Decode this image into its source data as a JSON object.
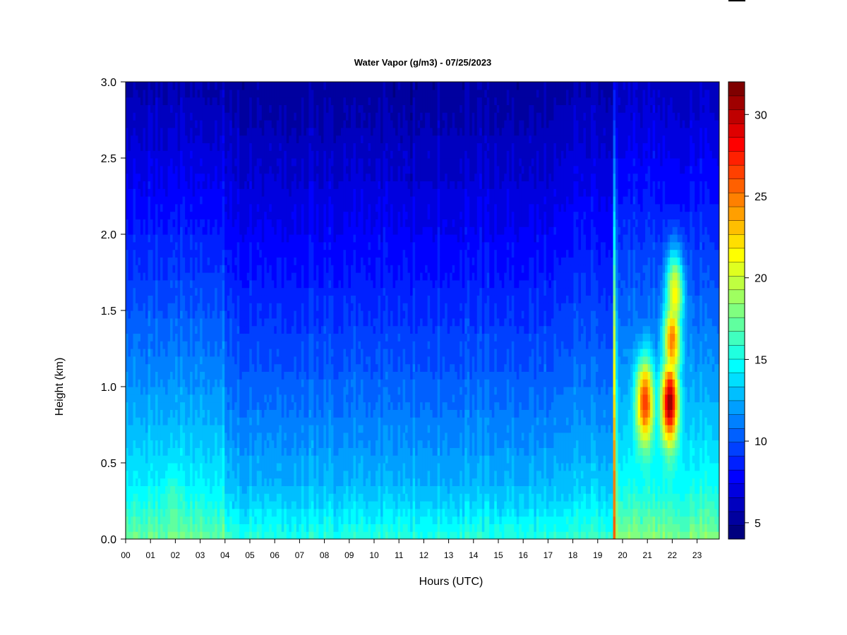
{
  "chart_data": {
    "type": "heatmap",
    "title": "Water Vapor (g/m3) - 07/25/2023",
    "xlabel": "Hours (UTC)",
    "ylabel": "Height (km)",
    "xlim": [
      0,
      24
    ],
    "ylim": [
      0,
      3.0
    ],
    "x_ticks": [
      "00",
      "01",
      "02",
      "03",
      "04",
      "05",
      "06",
      "07",
      "08",
      "09",
      "10",
      "11",
      "12",
      "13",
      "14",
      "15",
      "16",
      "17",
      "18",
      "19",
      "20",
      "21",
      "22",
      "23"
    ],
    "y_ticks": [
      "0.0",
      "0.5",
      "1.0",
      "1.5",
      "2.0",
      "2.5",
      "3.0"
    ],
    "colorbar": {
      "min": 4,
      "max": 32,
      "ticks": [
        "5",
        "10",
        "15",
        "20",
        "25",
        "30"
      ],
      "colors": [
        "#00007f",
        "#00009f",
        "#0000bf",
        "#0000df",
        "#0000ff",
        "#0020ff",
        "#0040ff",
        "#0060ff",
        "#0080ff",
        "#009fff",
        "#00bfff",
        "#00dfff",
        "#00ffff",
        "#20ffdf",
        "#40ffbf",
        "#60ff9f",
        "#80ff80",
        "#9fff60",
        "#bfff40",
        "#dfff20",
        "#ffff00",
        "#ffdf00",
        "#ffbf00",
        "#ff9f00",
        "#ff8000",
        "#ff6000",
        "#ff4000",
        "#ff2000",
        "#ff0000",
        "#df0000",
        "#bf0000",
        "#9f0000",
        "#7f0000"
      ]
    },
    "profile_regimes": [
      {
        "hours": [
          0,
          4
        ],
        "surface": 16.5,
        "top": 5.5
      },
      {
        "hours": [
          4,
          17.3
        ],
        "surface": 14.5,
        "top": 5.0
      },
      {
        "hours": [
          17.3,
          19.6
        ],
        "surface": 15.0,
        "top": 5.5
      },
      {
        "hours": [
          19.6,
          23.9
        ],
        "surface": 17.0,
        "top": 6.0
      }
    ],
    "features": [
      {
        "hour": 1.9,
        "height": 0.1,
        "value": 17,
        "note": "early-morning moist surface layer"
      },
      {
        "hour": 19.7,
        "height": 0.1,
        "value": 30,
        "note": "narrow vertical streak"
      },
      {
        "hour": 20.9,
        "height": 0.9,
        "value": 27
      },
      {
        "hour": 21.9,
        "height": 0.9,
        "value": 31
      },
      {
        "hour": 22.0,
        "height": 1.3,
        "value": 25
      },
      {
        "hour": 22.1,
        "height": 1.6,
        "value": 22
      }
    ]
  }
}
